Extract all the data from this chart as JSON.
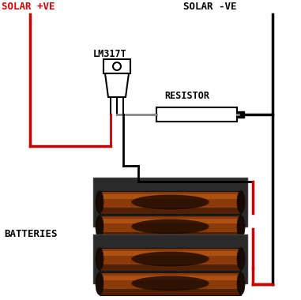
{
  "bg_color": "#ffffff",
  "solar_pos_label": "SOLAR +VE",
  "solar_neg_label": "SOLAR -VE",
  "lm317t_label": "LM317T",
  "resistor_label": "RESISTOR",
  "batteries_label": "BATTERIES",
  "label_color_red": "#cc0000",
  "label_color_black": "#000000",
  "wire_red": "#cc0000",
  "wire_black": "#000000",
  "wire_gray": "#888888",
  "figsize": [
    3.81,
    3.8
  ],
  "dpi": 100
}
